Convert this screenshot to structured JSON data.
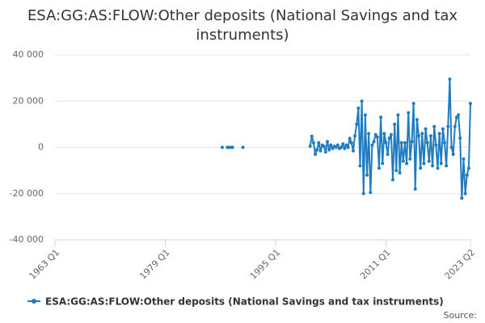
{
  "chart_data": {
    "type": "line",
    "title": "ESA:GG:AS:FLOW:Other deposits (National Savings and tax instruments)",
    "source": "Source:",
    "categories": [
      "1963 Q1",
      null,
      null,
      null,
      null,
      null,
      null,
      null,
      null,
      null,
      null,
      null,
      null,
      null,
      null,
      null,
      null,
      null,
      null,
      null,
      null,
      null,
      null,
      null,
      null,
      null,
      null,
      null,
      null,
      null,
      null,
      null,
      null,
      null,
      null,
      null,
      null,
      null,
      null,
      null,
      null,
      null,
      null,
      null,
      null,
      null,
      null,
      null,
      null,
      null,
      null,
      null,
      null,
      null,
      null,
      null,
      null,
      null,
      null,
      null,
      null,
      null,
      null,
      null,
      "1979 Q1",
      null,
      null,
      null,
      null,
      null,
      null,
      null,
      null,
      null,
      null,
      null,
      null,
      null,
      null,
      null,
      null,
      null,
      null,
      null,
      null,
      null,
      null,
      null,
      null,
      null,
      null,
      null,
      null,
      null,
      null,
      null,
      null,
      null,
      null,
      null,
      null,
      null,
      null,
      null,
      null,
      null,
      null,
      null,
      null,
      null,
      null,
      null,
      null,
      null,
      null,
      null,
      null,
      null,
      null,
      null,
      null,
      null,
      null,
      null,
      null,
      null,
      null,
      null,
      "1995 Q1",
      null,
      null,
      null,
      null,
      null,
      null,
      null,
      null,
      null,
      null,
      null,
      null,
      null,
      null,
      null,
      null,
      null,
      null,
      null,
      null,
      null,
      null,
      null,
      null,
      null,
      null,
      null,
      null,
      null,
      null,
      null,
      null,
      null,
      null,
      null,
      null,
      null,
      null,
      null,
      null,
      null,
      null,
      null,
      null,
      null,
      null,
      null,
      null,
      null,
      null,
      null,
      null,
      null,
      null,
      null,
      null,
      null,
      null,
      null,
      null,
      null,
      null,
      null,
      "2011 Q1",
      null,
      null,
      null,
      null,
      null,
      null,
      null,
      null,
      null,
      null,
      null,
      null,
      null,
      null,
      null,
      null,
      null,
      null,
      null,
      null,
      null,
      null,
      null,
      null,
      null,
      null,
      null,
      null,
      null,
      null,
      null,
      null,
      null,
      null,
      null,
      null,
      null,
      null,
      null,
      null,
      null,
      null,
      null,
      null,
      null,
      null,
      null,
      null,
      "2023 Q2"
    ],
    "series": [
      {
        "name": "ESA:GG:AS:FLOW:Other deposits (National Savings and tax instruments)",
        "color": "#1f7cc1",
        "values": [
          null,
          null,
          null,
          null,
          null,
          null,
          null,
          null,
          null,
          null,
          null,
          null,
          null,
          null,
          null,
          null,
          null,
          null,
          null,
          null,
          null,
          null,
          null,
          null,
          null,
          null,
          null,
          null,
          null,
          null,
          null,
          null,
          null,
          null,
          null,
          null,
          null,
          null,
          null,
          null,
          null,
          null,
          null,
          null,
          null,
          null,
          null,
          null,
          null,
          null,
          null,
          null,
          null,
          null,
          null,
          null,
          null,
          null,
          null,
          null,
          null,
          null,
          null,
          null,
          null,
          null,
          null,
          null,
          null,
          null,
          null,
          null,
          null,
          null,
          null,
          null,
          null,
          null,
          null,
          null,
          null,
          null,
          null,
          null,
          null,
          null,
          null,
          null,
          null,
          null,
          null,
          null,
          null,
          null,
          null,
          null,
          null,
          0,
          null,
          null,
          0,
          0,
          0,
          0,
          null,
          null,
          null,
          null,
          null,
          0,
          null,
          null,
          null,
          null,
          null,
          null,
          null,
          null,
          null,
          null,
          null,
          null,
          null,
          null,
          null,
          null,
          null,
          null,
          null,
          null,
          null,
          null,
          null,
          null,
          null,
          null,
          null,
          null,
          null,
          null,
          null,
          null,
          null,
          null,
          null,
          null,
          null,
          null,
          500,
          4800,
          2000,
          -3000,
          -1000,
          2000,
          -1500,
          1000,
          500,
          -2000,
          2500,
          -1000,
          1000,
          -500,
          500,
          0,
          1000,
          -500,
          0,
          1500,
          -500,
          1000,
          0,
          3800,
          2000,
          -1500,
          5000,
          10000,
          17000,
          -8000,
          20000,
          -20000,
          14000,
          -12000,
          6000,
          -19500,
          1000,
          2500,
          5500,
          4500,
          -9000,
          13000,
          -7000,
          6000,
          2000,
          -3000,
          4000,
          5500,
          -14000,
          10000,
          -10000,
          14000,
          -11000,
          2000,
          -6000,
          2000,
          -7000,
          15000,
          -5000,
          2500,
          19000,
          -18000,
          12000,
          5000,
          -9000,
          6000,
          -7000,
          8000,
          2000,
          -6000,
          5000,
          -8000,
          9000,
          1000,
          -9000,
          6000,
          -7000,
          8000,
          2000,
          -8000,
          9000,
          29500,
          0,
          -3000,
          9000,
          13000,
          14000,
          4000,
          -22000,
          -5000,
          -20000,
          -12000,
          -9000,
          19000
        ]
      }
    ],
    "ylim": [
      -40000,
      40000
    ],
    "yticks": [
      {
        "value": -40000,
        "label": "-40 000"
      },
      {
        "value": -20000,
        "label": "-20 000"
      },
      0,
      {
        "value": 20000,
        "label": "20 000"
      },
      {
        "value": 40000,
        "label": "40 000"
      }
    ],
    "grid": true
  }
}
